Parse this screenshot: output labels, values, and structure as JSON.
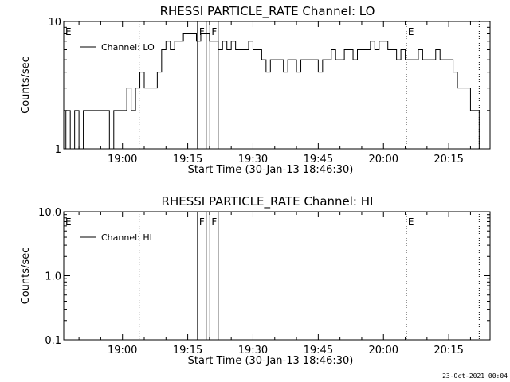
{
  "stamp": "23-Oct-2021 00:04",
  "chart_data": [
    {
      "type": "line",
      "title": "RHESSI PARTICLE_RATE Channel: LO",
      "xlabel": "Start Time (30-Jan-13 18:46:30)",
      "ylabel": "Counts/sec",
      "yscale": "log",
      "ylim": [
        1,
        10
      ],
      "yticks": [
        "1",
        "10"
      ],
      "xlim": [
        "18:46:30",
        "20:24:30"
      ],
      "xticks": [
        "19:00",
        "19:15",
        "19:30",
        "19:45",
        "20:00",
        "20:15"
      ],
      "legend": "top-left",
      "series": [
        {
          "name": "Channel: LO",
          "x": [
            "18:46:30",
            "18:47",
            "18:48",
            "18:49",
            "18:50",
            "18:51",
            "18:52",
            "18:53",
            "18:54",
            "18:55",
            "18:56",
            "18:57",
            "18:58",
            "18:59",
            "19:00",
            "19:01",
            "19:02",
            "19:03",
            "19:04",
            "19:05",
            "19:06",
            "19:07",
            "19:08",
            "19:09",
            "19:10",
            "19:11",
            "19:12",
            "19:13",
            "19:14",
            "19:15",
            "19:16",
            "19:17",
            "19:18",
            "19:19",
            "19:20",
            "19:21",
            "19:22",
            "19:23",
            "19:24",
            "19:25",
            "19:26",
            "19:27",
            "19:28",
            "19:29",
            "19:30",
            "19:31",
            "19:32",
            "19:33",
            "19:34",
            "19:35",
            "19:36",
            "19:37",
            "19:38",
            "19:39",
            "19:40",
            "19:41",
            "19:42",
            "19:43",
            "19:44",
            "19:45",
            "19:46",
            "19:47",
            "19:48",
            "19:49",
            "19:50",
            "19:51",
            "19:52",
            "19:53",
            "19:54",
            "19:55",
            "19:56",
            "19:57",
            "19:58",
            "19:59",
            "20:00",
            "20:01",
            "20:02",
            "20:03",
            "20:04",
            "20:05",
            "20:06",
            "20:07",
            "20:08",
            "20:09",
            "20:10",
            "20:11",
            "20:12",
            "20:13",
            "20:14",
            "20:15",
            "20:16",
            "20:17",
            "20:18",
            "20:19",
            "20:20",
            "20:21",
            "20:22"
          ],
          "y": [
            1,
            2,
            1,
            2,
            1,
            2,
            2,
            2,
            2,
            2,
            2,
            1,
            2,
            2,
            2,
            3,
            2,
            3,
            4,
            3,
            3,
            3,
            4,
            6,
            7,
            6,
            7,
            7,
            8,
            8,
            8,
            7,
            8,
            8,
            7,
            7,
            6,
            7,
            6,
            7,
            6,
            6,
            6,
            7,
            6,
            6,
            5,
            4,
            5,
            5,
            5,
            4,
            5,
            5,
            4,
            5,
            5,
            5,
            5,
            4,
            5,
            5,
            6,
            5,
            5,
            6,
            6,
            5,
            6,
            6,
            6,
            7,
            6,
            7,
            7,
            6,
            6,
            5,
            6,
            5,
            5,
            5,
            6,
            5,
            5,
            5,
            6,
            5,
            5,
            5,
            4,
            3,
            3,
            3,
            2,
            2,
            1
          ],
          "color": "#000000"
        }
      ],
      "annotations": [
        {
          "label": "E",
          "time": "18:46:30",
          "style": "dotted"
        },
        {
          "label": "",
          "time": "19:03:50",
          "style": "dotted"
        },
        {
          "label": "F",
          "time": "19:17:15",
          "style": "solid"
        },
        {
          "label": "",
          "time": "19:19:15",
          "style": "solid"
        },
        {
          "label": "F",
          "time": "19:20:05",
          "style": "solid"
        },
        {
          "label": "",
          "time": "19:22:00",
          "style": "solid"
        },
        {
          "label": "E",
          "time": "20:05:15",
          "style": "dotted"
        },
        {
          "label": "",
          "time": "20:22:00",
          "style": "dotted"
        }
      ]
    },
    {
      "type": "line",
      "title": "RHESSI PARTICLE_RATE Channel: HI",
      "xlabel": "Start Time (30-Jan-13 18:46:30)",
      "ylabel": "Counts/sec",
      "yscale": "log",
      "ylim": [
        0.1,
        10
      ],
      "yticks": [
        "0.1",
        "1.0",
        "10.0"
      ],
      "xlim": [
        "18:46:30",
        "20:24:30"
      ],
      "xticks": [
        "19:00",
        "19:15",
        "19:30",
        "19:45",
        "20:00",
        "20:15"
      ],
      "legend": "top-left",
      "series": [
        {
          "name": "Channel: HI",
          "x": [],
          "y": [],
          "color": "#000000"
        }
      ],
      "annotations": [
        {
          "label": "E",
          "time": "18:46:30",
          "style": "dotted"
        },
        {
          "label": "",
          "time": "19:03:50",
          "style": "dotted"
        },
        {
          "label": "F",
          "time": "19:17:15",
          "style": "solid"
        },
        {
          "label": "",
          "time": "19:19:15",
          "style": "solid"
        },
        {
          "label": "F",
          "time": "19:20:05",
          "style": "solid"
        },
        {
          "label": "",
          "time": "19:22:00",
          "style": "solid"
        },
        {
          "label": "E",
          "time": "20:05:15",
          "style": "dotted"
        },
        {
          "label": "",
          "time": "20:22:00",
          "style": "dotted"
        }
      ]
    }
  ]
}
